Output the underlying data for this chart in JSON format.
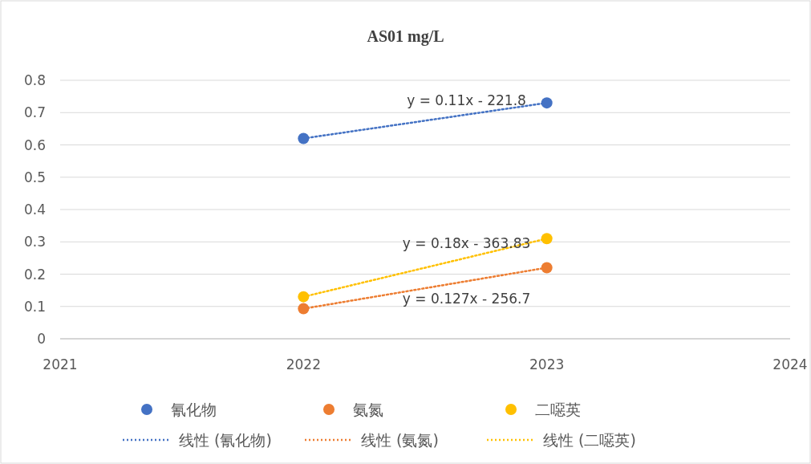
{
  "chart_data": {
    "type": "scatter",
    "title": "AS01  mg/L",
    "x": [
      2022,
      2023
    ],
    "xlim": [
      2021,
      2024
    ],
    "xticks": [
      2021,
      2022,
      2023,
      2024
    ],
    "ylim": [
      0,
      0.8
    ],
    "yticks": [
      0,
      0.1,
      0.2,
      0.3,
      0.4,
      0.5,
      0.6,
      0.7,
      0.8
    ],
    "grid": "y",
    "legend": "bottom",
    "marker": "circle",
    "series": [
      {
        "name": "氰化物",
        "color": "#4472c4",
        "values": [
          0.62,
          0.73
        ]
      },
      {
        "name": "氨氮",
        "color": "#ed7d31",
        "values": [
          0.093,
          0.22
        ]
      },
      {
        "name": "二噁英",
        "color": "#ffc000",
        "values": [
          0.13,
          0.31
        ]
      },
      {
        "name": "线性 (氰化物)",
        "type": "line",
        "marker": "none",
        "line_style": "dotted",
        "color": "#4472c4",
        "values": [
          0.62,
          0.73
        ]
      },
      {
        "name": "线性 (氨氮)",
        "type": "line",
        "marker": "none",
        "line_style": "dotted",
        "color": "#ed7d31",
        "values": [
          0.093,
          0.22
        ]
      },
      {
        "name": "线性 (二噁英)",
        "type": "line",
        "marker": "none",
        "line_style": "dotted",
        "color": "#ffc000",
        "values": [
          0.13,
          0.31
        ]
      }
    ],
    "annotations": [
      "y = 0.11x - 221.8",
      "y = 0.127x - 256.7",
      "y = 0.18x - 363.83"
    ]
  }
}
